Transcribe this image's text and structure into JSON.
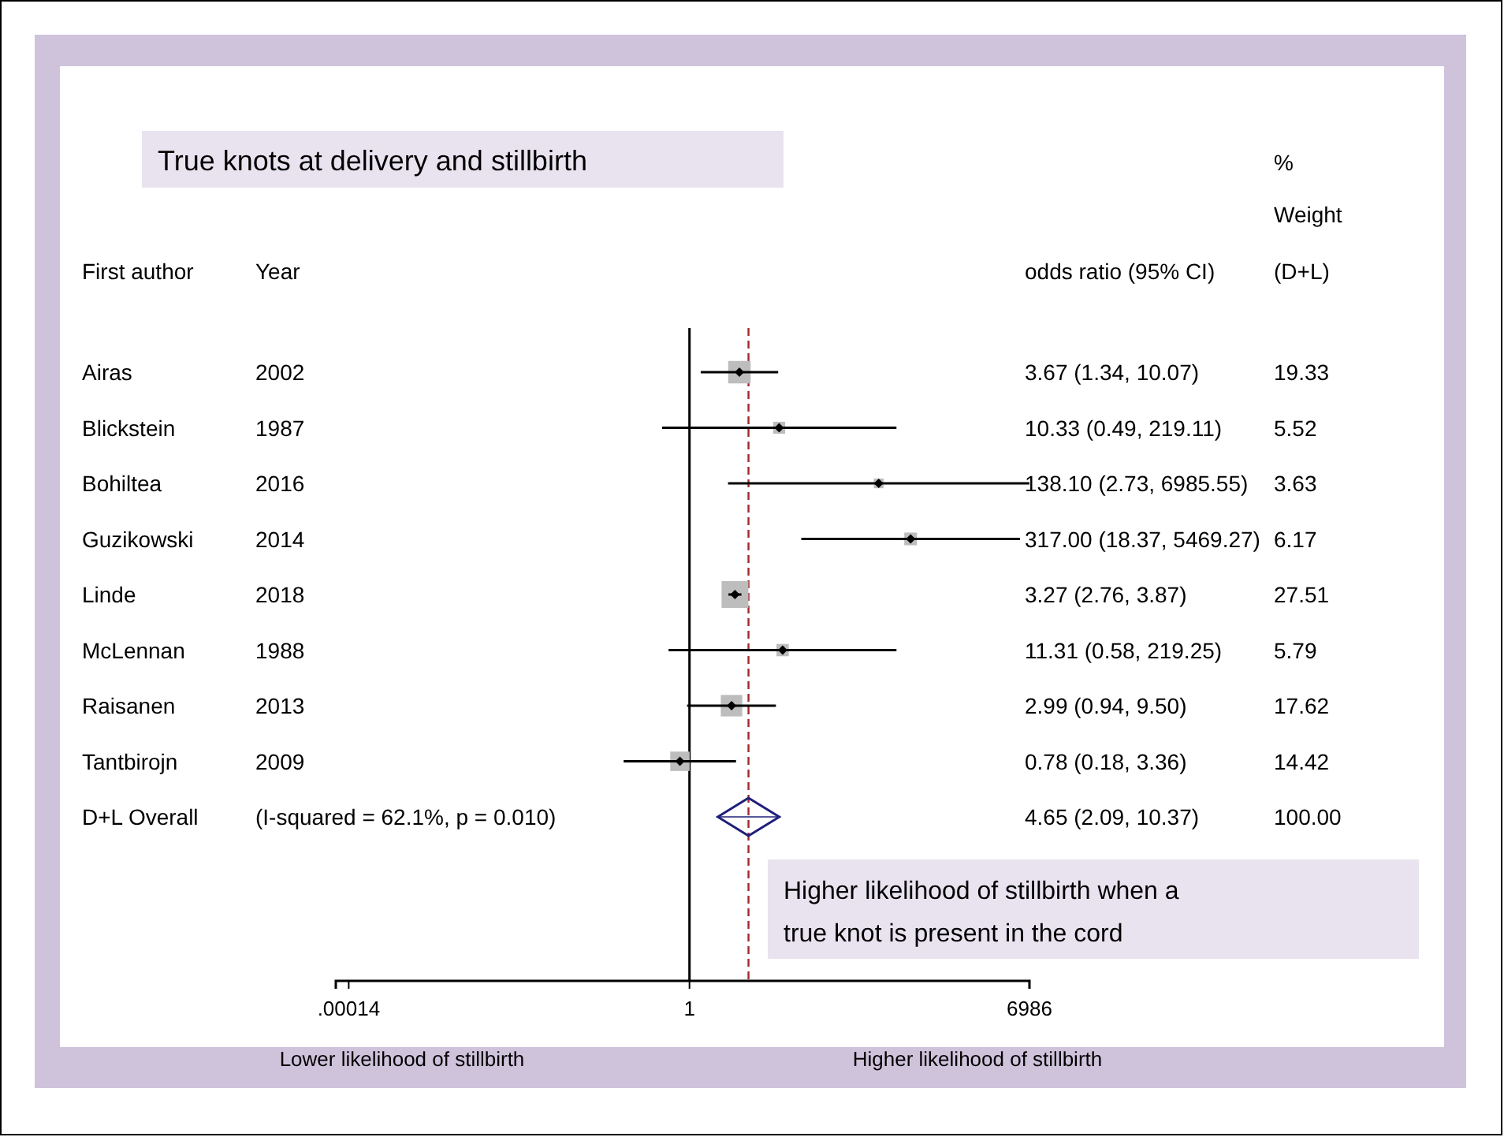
{
  "chart_data": {
    "type": "bubble",
    "title": "True knots at delivery and stillbirth",
    "orientation": "horizontal",
    "log": "x",
    "categories": [
      "Airas",
      "Blickstein",
      "Bohiltea",
      "Guzikowski",
      "Linde",
      "McLennan",
      "Raisanen",
      "Tantbirojn",
      "D+L Overall"
    ],
    "series": [
      {
        "marker": "square",
        "color": "#bdbdbd",
        "values": [
          3.67,
          10.33,
          138.1,
          317.0,
          3.27,
          11.31,
          2.99,
          0.78,
          null
        ],
        "errors": [
          [
            1.34,
            10.07
          ],
          [
            0.49,
            219.11
          ],
          [
            2.73,
            6985.55
          ],
          [
            18.37,
            5469.27
          ],
          [
            2.76,
            3.87
          ],
          [
            0.58,
            219.25
          ],
          [
            0.94,
            9.5
          ],
          [
            0.18,
            3.36
          ],
          null
        ],
        "sizes": [
          0.703,
          0.201,
          0.132,
          0.224,
          1,
          0.21,
          0.641,
          0.524,
          null
        ]
      },
      {
        "type": "scatter",
        "marker": "diamond",
        "color": "#1f1f7a",
        "values": [
          null,
          null,
          null,
          null,
          null,
          null,
          null,
          null,
          4.65
        ],
        "errors": [
          null,
          null,
          null,
          null,
          null,
          null,
          null,
          null,
          [
            2.09,
            10.37
          ]
        ]
      }
    ],
    "xlim": [
      0.0001,
      7000
    ],
    "xticks": [
      {
        "value": 0.00014,
        "label": ".00014"
      },
      1,
      6986
    ],
    "ref_lines": [
      {
        "axis": "x",
        "value": 1,
        "color": "#000000",
        "line_style": "solid"
      },
      {
        "axis": "x",
        "value": 4.65,
        "color": "#a0282d",
        "line_style": "dashed"
      }
    ],
    "annotations": [
      "First author",
      "Year",
      "odds ratio (95% CI)",
      "%",
      "Weight",
      "(D+L)",
      "2002",
      "1987",
      "2016",
      "2014",
      "2018",
      "1988",
      "2013",
      "2009",
      "(I-squared = 62.1%, p = 0.010)",
      "3.67 (1.34, 10.07)",
      "10.33 (0.49, 219.11)",
      "138.10 (2.73, 6985.55)",
      "317.00 (18.37, 5469.27)",
      "3.27 (2.76, 3.87)",
      "11.31 (0.58, 219.25)",
      "2.99 (0.94, 9.50)",
      "0.78 (0.18, 3.36)",
      "4.65 (2.09, 10.37)",
      "19.33",
      "5.52",
      "3.63",
      "6.17",
      "27.51",
      "5.79",
      "17.62",
      "14.42",
      "100.00",
      "Lower likelihood of stillbirth",
      "Higher likelihood of stillbirth",
      "Higher likelihood of stillbirth when a true knot is present in the cord"
    ]
  }
}
